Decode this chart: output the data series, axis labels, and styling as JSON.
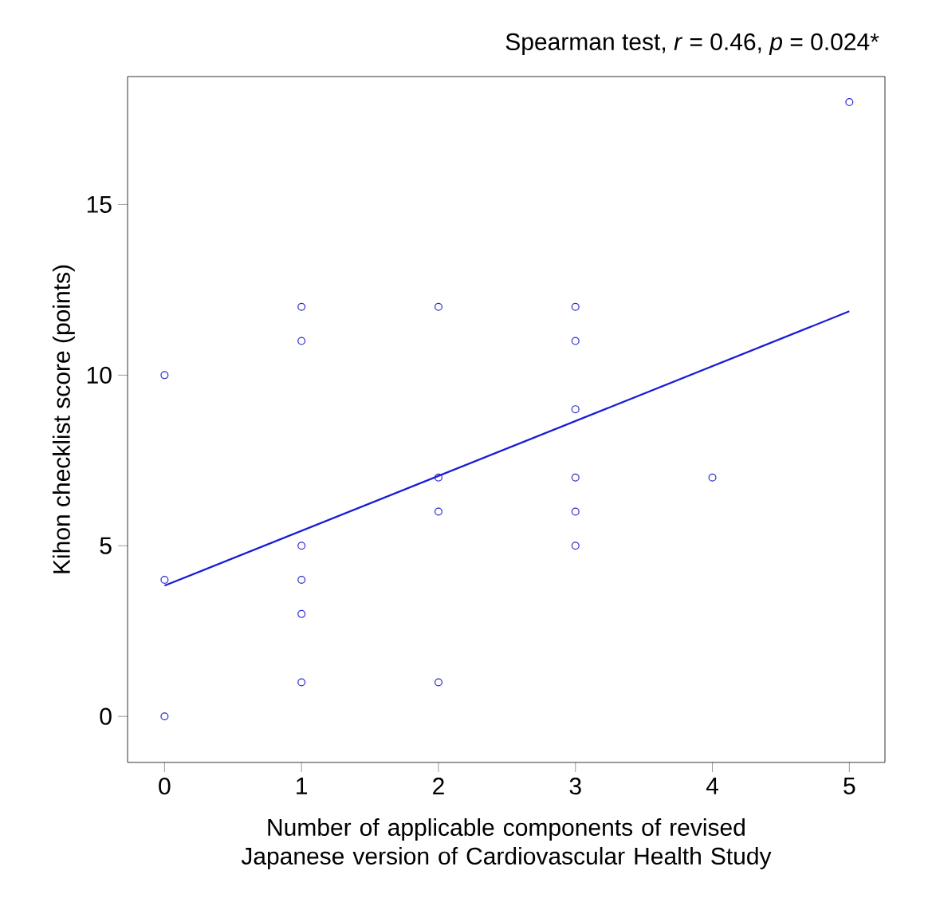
{
  "chart_data": {
    "type": "scatter",
    "title": "Spearman test, *r* = 0.46, *p* = 0.024*",
    "xlabel": "Number of applicable components of revised Japanese version of Cardiovascular Health Study",
    "ylabel": "Kihon checklist score (points)",
    "xlim": [
      -0.27,
      5.26
    ],
    "ylim": [
      -1.35,
      18.75
    ],
    "xticks": [
      0,
      1,
      2,
      3,
      4,
      5
    ],
    "yticks": [
      0,
      5,
      10,
      15
    ],
    "grid": false,
    "series": [
      {
        "color": "#2a2ad0",
        "marker": "circle",
        "x": [
          0,
          0,
          0,
          1,
          1,
          1,
          1,
          1,
          1,
          2,
          2,
          2,
          2,
          3,
          3,
          3,
          3,
          3,
          3,
          4,
          5
        ],
        "values": [
          10,
          4,
          0,
          12,
          11,
          5,
          4,
          3,
          1,
          12,
          7,
          6,
          1,
          12,
          11,
          9,
          7,
          6,
          5,
          7,
          18
        ]
      },
      {
        "type": "line",
        "color": "#1a1ad8",
        "x": [
          0,
          5
        ],
        "values": [
          3.83,
          11.87
        ]
      }
    ]
  }
}
